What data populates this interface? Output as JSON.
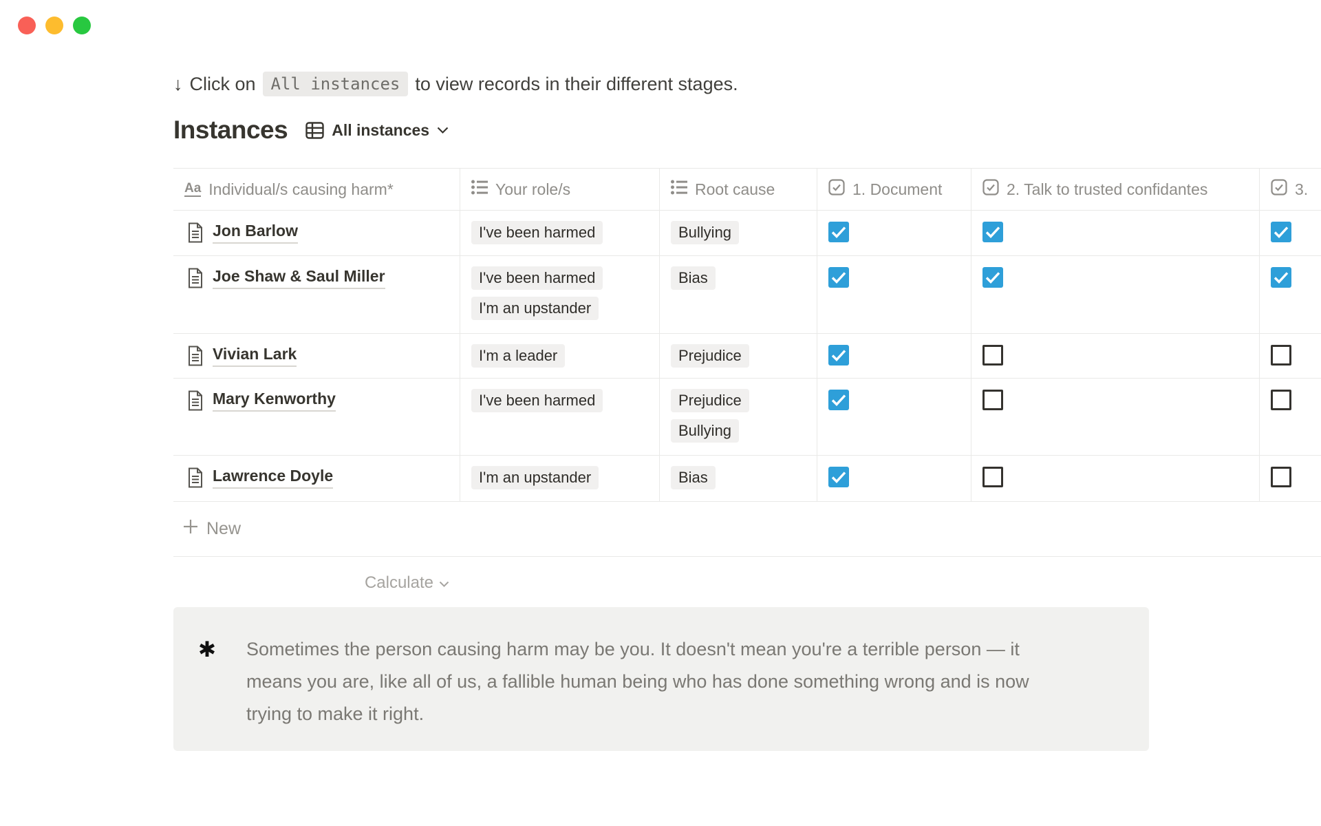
{
  "window": {
    "traffic_lights": [
      "close",
      "minimize",
      "zoom"
    ]
  },
  "caption": {
    "arrow": "↓",
    "before": "Click on",
    "code": "All instances",
    "after": "to view records in their different stages."
  },
  "header": {
    "title": "Instances",
    "view": {
      "icon": "table-view-icon",
      "label": "All instances"
    }
  },
  "table": {
    "columns": [
      {
        "icon": "title-icon",
        "label": "Individual/s causing harm*"
      },
      {
        "icon": "multiselect-icon",
        "label": "Your role/s"
      },
      {
        "icon": "multiselect-icon",
        "label": "Root cause"
      },
      {
        "icon": "checkbox-icon",
        "label": "1. Document"
      },
      {
        "icon": "checkbox-icon",
        "label": "2. Talk to trusted confidantes"
      },
      {
        "icon": "checkbox-icon",
        "label": "3."
      }
    ],
    "rows": [
      {
        "name": "Jon Barlow",
        "roles": [
          "I've been harmed"
        ],
        "root_causes": [
          "Bullying"
        ],
        "document": true,
        "talk": true,
        "third": true
      },
      {
        "name": "Joe Shaw & Saul Miller",
        "roles": [
          "I've been harmed",
          "I'm an upstander"
        ],
        "root_causes": [
          "Bias"
        ],
        "document": true,
        "talk": true,
        "third": true
      },
      {
        "name": "Vivian Lark",
        "roles": [
          "I'm a leader"
        ],
        "root_causes": [
          "Prejudice"
        ],
        "document": true,
        "talk": false,
        "third": false
      },
      {
        "name": "Mary Kenworthy",
        "roles": [
          "I've been harmed"
        ],
        "root_causes": [
          "Prejudice",
          "Bullying"
        ],
        "document": true,
        "talk": false,
        "third": false
      },
      {
        "name": "Lawrence Doyle",
        "roles": [
          "I'm an upstander"
        ],
        "root_causes": [
          "Bias"
        ],
        "document": true,
        "talk": false,
        "third": false
      }
    ],
    "new_row_label": "New",
    "calculate_label": "Calculate"
  },
  "callout": {
    "icon": "asterisk-icon",
    "icon_glyph": "✱",
    "text": "Sometimes the person causing harm may be you. It doesn't mean you're a terrible person — it\nmeans you are, like all of us, a fallible human being who has done something wrong and is now\ntrying to make it right."
  },
  "colors": {
    "checkbox_checked": "#2e9fd9",
    "tag_background": "#f1f0ef",
    "callout_background": "#f1f1ef",
    "traffic_red": "#f96057",
    "traffic_yellow": "#fdbc2e",
    "traffic_green": "#28c840"
  }
}
